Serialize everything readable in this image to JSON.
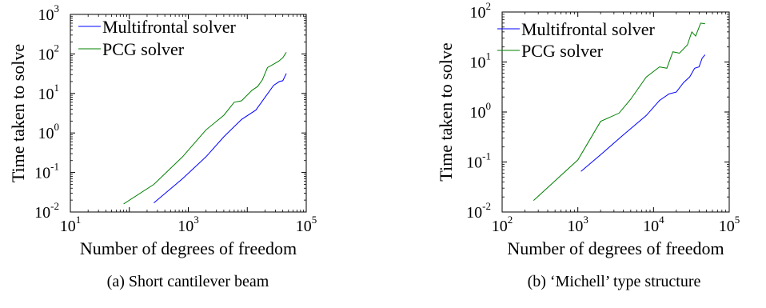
{
  "chart_data": [
    {
      "type": "line",
      "caption": "(a) Short cantilever beam",
      "xlabel": "Number of degrees of freedom",
      "ylabel": "Time taken to solve",
      "xscale": "log",
      "yscale": "log",
      "xlim": [
        10,
        100000
      ],
      "ylim": [
        0.01,
        1000
      ],
      "xticks": [
        10,
        1000,
        100000
      ],
      "xtick_labels": [
        {
          "base": "10",
          "exp": "1"
        },
        {
          "base": "10",
          "exp": "3"
        },
        {
          "base": "10",
          "exp": "5"
        }
      ],
      "yticks": [
        0.01,
        0.1,
        1,
        10,
        100,
        1000
      ],
      "ytick_labels": [
        {
          "base": "10",
          "exp": "-2"
        },
        {
          "base": "10",
          "exp": "-1"
        },
        {
          "base": "10",
          "exp": "0"
        },
        {
          "base": "10",
          "exp": "1"
        },
        {
          "base": "10",
          "exp": "2"
        },
        {
          "base": "10",
          "exp": "3"
        }
      ],
      "grid": false,
      "legend_position": "top-right",
      "series": [
        {
          "name": "Multifrontal solver",
          "color": "#0000ff",
          "points": [
            [
              260,
              0.017
            ],
            [
              800,
              0.07
            ],
            [
              2000,
              0.25
            ],
            [
              4000,
              0.8
            ],
            [
              8000,
              2.2
            ],
            [
              14000,
              3.8
            ],
            [
              20000,
              8
            ],
            [
              28000,
              16
            ],
            [
              35000,
              20
            ],
            [
              40000,
              21
            ],
            [
              46000,
              32
            ]
          ]
        },
        {
          "name": "PCG solver",
          "color": "#008000",
          "points": [
            [
              80,
              0.016
            ],
            [
              260,
              0.05
            ],
            [
              800,
              0.25
            ],
            [
              2000,
              1.2
            ],
            [
              4000,
              2.8
            ],
            [
              6000,
              6
            ],
            [
              8000,
              6.5
            ],
            [
              12000,
              12
            ],
            [
              15000,
              15
            ],
            [
              18000,
              22
            ],
            [
              22000,
              45
            ],
            [
              28000,
              55
            ],
            [
              34000,
              65
            ],
            [
              40000,
              80
            ],
            [
              46000,
              110
            ]
          ]
        }
      ]
    },
    {
      "type": "line",
      "caption": "(b) ‘Michell’ type structure",
      "xlabel": "Number of degrees of freedom",
      "ylabel": "Time taken to solve",
      "xscale": "log",
      "yscale": "log",
      "xlim": [
        100,
        100000
      ],
      "ylim": [
        0.01,
        100
      ],
      "xticks": [
        100,
        1000,
        10000,
        100000
      ],
      "xtick_labels": [
        {
          "base": "10",
          "exp": "2"
        },
        {
          "base": "10",
          "exp": "3"
        },
        {
          "base": "10",
          "exp": "4"
        },
        {
          "base": "10",
          "exp": "5"
        }
      ],
      "yticks": [
        0.01,
        0.1,
        1,
        10,
        100
      ],
      "ytick_labels": [
        {
          "base": "10",
          "exp": "-2"
        },
        {
          "base": "10",
          "exp": "-1"
        },
        {
          "base": "10",
          "exp": "0"
        },
        {
          "base": "10",
          "exp": "1"
        },
        {
          "base": "10",
          "exp": "2"
        }
      ],
      "grid": false,
      "legend_position": "top-right",
      "series": [
        {
          "name": "Multifrontal solver",
          "color": "#0000ff",
          "points": [
            [
              1100,
              0.065
            ],
            [
              2000,
              0.14
            ],
            [
              4000,
              0.35
            ],
            [
              8000,
              0.85
            ],
            [
              12000,
              1.7
            ],
            [
              16000,
              2.3
            ],
            [
              20000,
              2.5
            ],
            [
              25000,
              3.9
            ],
            [
              30000,
              5
            ],
            [
              35000,
              7.5
            ],
            [
              40000,
              8
            ],
            [
              44000,
              12
            ],
            [
              48000,
              14
            ]
          ]
        },
        {
          "name": "PCG solver",
          "color": "#008000",
          "points": [
            [
              260,
              0.017
            ],
            [
              1000,
              0.11
            ],
            [
              2000,
              0.65
            ],
            [
              3500,
              0.95
            ],
            [
              5000,
              1.8
            ],
            [
              8000,
              5
            ],
            [
              12000,
              8
            ],
            [
              15000,
              7.5
            ],
            [
              18000,
              16
            ],
            [
              22000,
              15
            ],
            [
              28000,
              22
            ],
            [
              32000,
              40
            ],
            [
              36000,
              33
            ],
            [
              42000,
              60
            ],
            [
              48000,
              58
            ]
          ]
        }
      ]
    }
  ]
}
